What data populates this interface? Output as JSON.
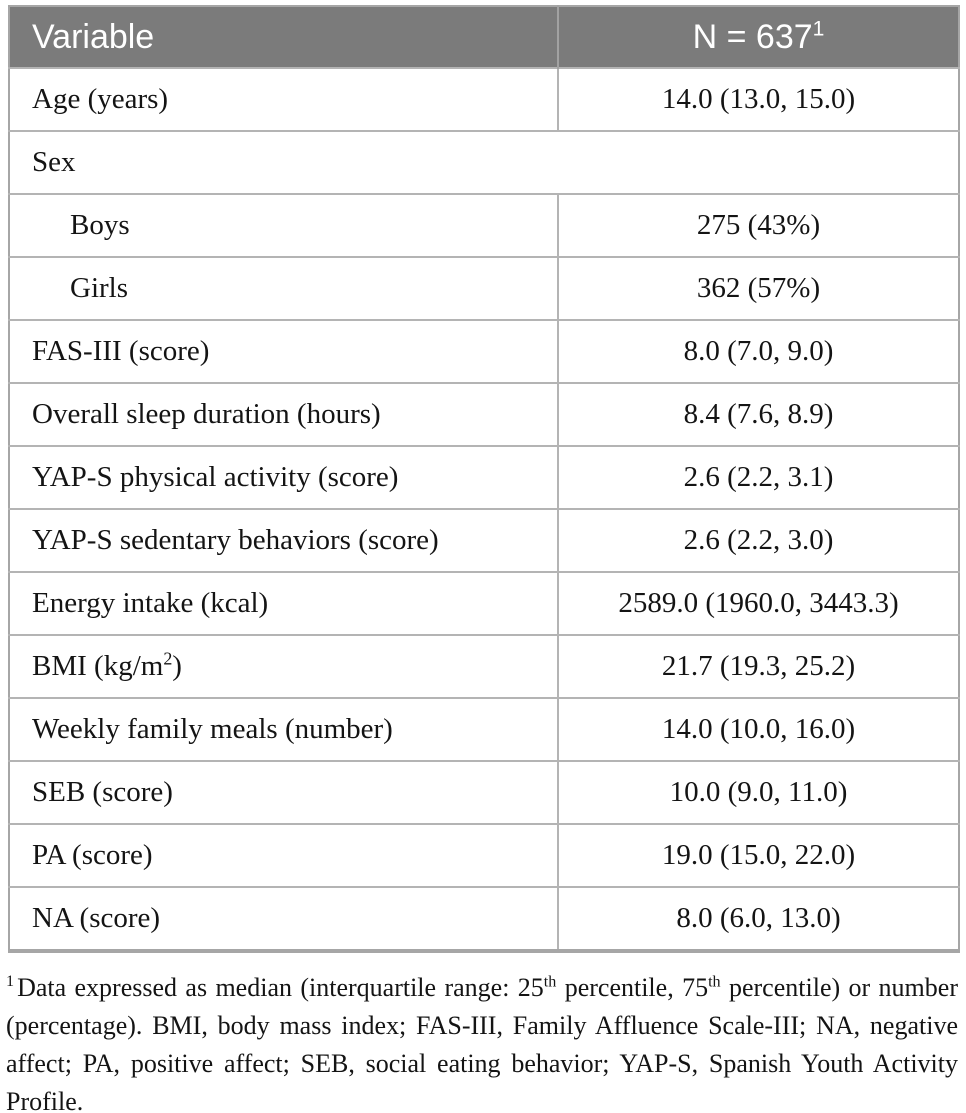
{
  "table": {
    "columns": [
      "Variable",
      "N = 637"
    ],
    "n_superscript": "1",
    "rows": [
      {
        "label": "Age (years)",
        "value": "14.0 (13.0, 15.0)"
      },
      {
        "label": "Sex"
      },
      {
        "label": "Boys",
        "value": "275 (43%)"
      },
      {
        "label": "Girls",
        "value": "362 (57%)"
      },
      {
        "label": "FAS-III (score)",
        "value": "8.0 (7.0, 9.0)"
      },
      {
        "label": "Overall sleep duration (hours)",
        "value": "8.4 (7.6, 8.9)"
      },
      {
        "label": "YAP-S physical activity (score)",
        "value": "2.6 (2.2, 3.1)"
      },
      {
        "label": "YAP-S sedentary behaviors (score)",
        "value": "2.6 (2.2, 3.0)"
      },
      {
        "label": "Energy intake (kcal)",
        "value": "2589.0 (1960.0, 3443.3)"
      },
      {
        "label_pre": "BMI (kg/m",
        "label_sup": "2",
        "label_post": ")",
        "value": "21.7 (19.3, 25.2)"
      },
      {
        "label": "Weekly family meals (number)",
        "value": "14.0 (10.0, 16.0)"
      },
      {
        "label": "SEB (score)",
        "value": "10.0 (9.0, 11.0)"
      },
      {
        "label": "PA (score)",
        "value": "19.0 (15.0, 22.0)"
      },
      {
        "label": "NA (score)",
        "value": "8.0 (6.0, 13.0)"
      }
    ]
  },
  "footnote": {
    "parts": [
      "1",
      "Data expressed as median (interquartile range: 25",
      "th",
      " percentile, 75",
      "th",
      " percentile) or number (percentage). BMI, body mass index; FAS-III, Family Affluence Scale-III; NA, negative affect; PA, positive affect; SEB, social eating behavior; YAP-S, Spanish Youth Activity Profile."
    ]
  },
  "colors": {
    "header_bg": "#7b7b7b",
    "header_text": "#ffffff",
    "inner_border": "#b4b4b4",
    "outer_border": "#a6a6a6",
    "body_text": "#141414"
  }
}
